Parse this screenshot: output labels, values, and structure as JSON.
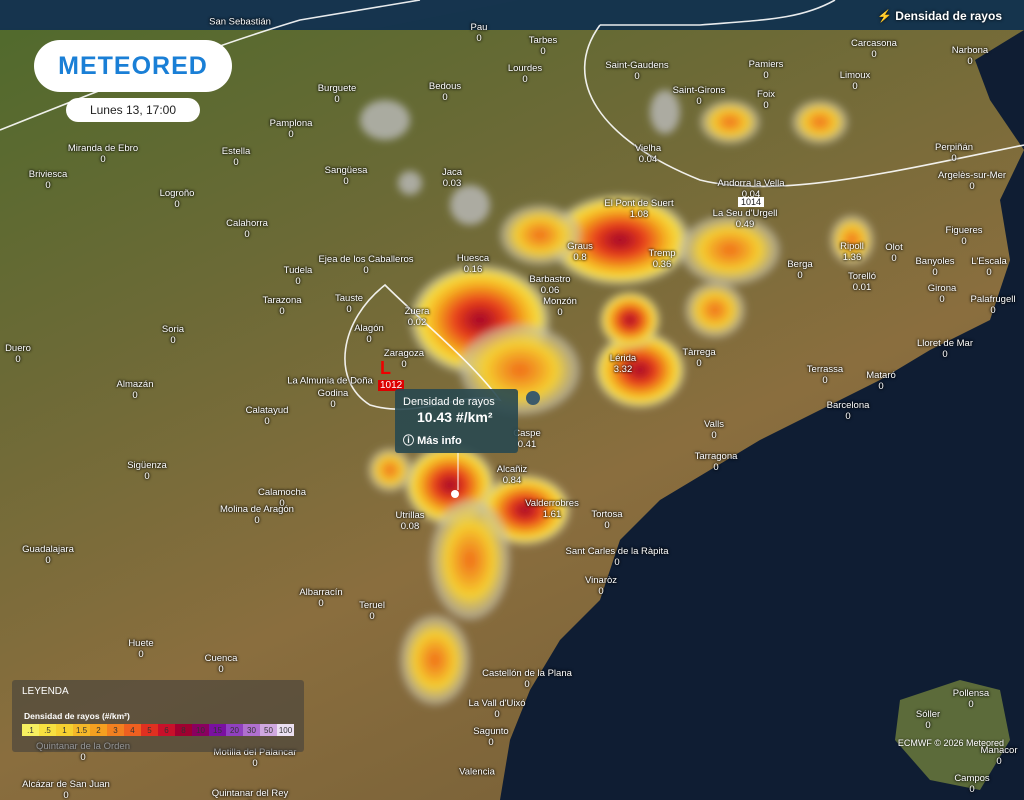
{
  "header": {
    "logo": "METEORED",
    "datetime": "Lunes 13, 17:00",
    "layer": "Densidad de rayos"
  },
  "tooltip": {
    "title": "Densidad de rayos",
    "value": "10.43 #/km²",
    "link": "Más info"
  },
  "pressure": [
    {
      "symbol": "L",
      "value": 1012
    },
    {
      "value": 1014
    }
  ],
  "legend": {
    "title": "LEYENDA",
    "subtitle": "Densidad de rayos (#/km²)",
    "ticks": [
      {
        "value": 0.1,
        "label": ".1"
      },
      {
        "value": 0.5,
        "label": ".5"
      },
      1,
      1.5,
      2,
      3,
      4,
      5,
      6,
      8,
      10,
      15,
      20,
      30,
      50,
      100
    ]
  },
  "footer": "ECMWF © 2026 Meteored",
  "cities": [
    {
      "name": "San Sebastián"
    },
    {
      "name": "Pau",
      "value": 0
    },
    {
      "name": "Tarbes",
      "value": 0
    },
    {
      "name": "Lourdes",
      "value": 0
    },
    {
      "name": "Saint-Gaudens",
      "value": 0
    },
    {
      "name": "Pamiers",
      "value": 0
    },
    {
      "name": "Carcasona",
      "value": 0
    },
    {
      "name": "Narbona",
      "value": 0
    },
    {
      "name": "Limoux",
      "value": 0
    },
    {
      "name": "Bilbao",
      "value": 0
    },
    {
      "name": "Burguete",
      "value": 0
    },
    {
      "name": "Bedous",
      "value": 0
    },
    {
      "name": "Saint-Girons",
      "value": 0
    },
    {
      "name": "Foix",
      "value": 0
    },
    {
      "name": "Pamplona",
      "value": 0
    },
    {
      "name": "Vielha",
      "value": 0.04
    },
    {
      "name": "Perpiñán",
      "value": 0
    },
    {
      "name": "Miranda de Ebro",
      "value": 0
    },
    {
      "name": "Estella",
      "value": 0
    },
    {
      "name": "Briviesca",
      "value": 0
    },
    {
      "name": "Sangüesa",
      "value": 0
    },
    {
      "name": "Jaca",
      "value": 0.03
    },
    {
      "name": "Andorra la Vella",
      "value": 0.04
    },
    {
      "name": "Argelès-sur-Mer",
      "value": 0
    },
    {
      "name": "Logroño",
      "value": 0
    },
    {
      "name": "El Pont de Suert",
      "value": 1.08
    },
    {
      "name": "La Seu d'Urgell",
      "value": 0.49
    },
    {
      "name": "Calahorra",
      "value": 0
    },
    {
      "name": "Figueres",
      "value": 0
    },
    {
      "name": "Ejea de los Caballeros",
      "value": 0
    },
    {
      "name": "Huesca",
      "value": 0.16
    },
    {
      "name": "Graus",
      "value": 0.8
    },
    {
      "name": "Tremp",
      "value": 0.36
    },
    {
      "name": "Ripoll",
      "value": 1.36
    },
    {
      "name": "Olot",
      "value": 0
    },
    {
      "name": "Tudela",
      "value": 0
    },
    {
      "name": "Berga",
      "value": 0
    },
    {
      "name": "Torelló",
      "value": 0.01
    },
    {
      "name": "Banyoles",
      "value": 0
    },
    {
      "name": "L'Escala",
      "value": 0
    },
    {
      "name": "Barbastro",
      "value": 0.06
    },
    {
      "name": "Tarazona",
      "value": 0
    },
    {
      "name": "Tauste",
      "value": 0
    },
    {
      "name": "Monzón",
      "value": 0
    },
    {
      "name": "Girona",
      "value": 0
    },
    {
      "name": "Palafrugell",
      "value": 0
    },
    {
      "name": "Soria",
      "value": 0
    },
    {
      "name": "Zuera",
      "value": 0.02
    },
    {
      "name": "Alagón",
      "value": 0
    },
    {
      "name": "Lérida",
      "value": 3.32
    },
    {
      "name": "Tàrrega",
      "value": 0
    },
    {
      "name": "Lloret de Mar",
      "value": 0
    },
    {
      "name": "Duero",
      "value": 0
    },
    {
      "name": "Zaragoza",
      "value": 0
    },
    {
      "name": "Almazán",
      "value": 0
    },
    {
      "name": "La Almunia de Doña"
    },
    {
      "name": "Godina",
      "value": 0
    },
    {
      "name": "Terrassa",
      "value": 0
    },
    {
      "name": "Mataró",
      "value": 0
    },
    {
      "name": "Barcelona",
      "value": 0
    },
    {
      "name": "Calatayud",
      "value": 0
    },
    {
      "name": "Valls",
      "value": 0
    },
    {
      "name": "Caspe",
      "value": 0.41
    },
    {
      "name": "Tarragona",
      "value": 0
    },
    {
      "name": "Sigüenza",
      "value": 0
    },
    {
      "name": "Alcañiz",
      "value": 0.84
    },
    {
      "name": "Calamocha",
      "value": 0
    },
    {
      "name": "Valderrobres",
      "value": 1.61
    },
    {
      "name": "Utrillas",
      "value": 0.08
    },
    {
      "name": "Tortosa",
      "value": 0
    },
    {
      "name": "Molina de Aragón",
      "value": 0
    },
    {
      "name": "Sant Carles de la Ràpita",
      "value": 0
    },
    {
      "name": "Guadalajara",
      "value": 0
    },
    {
      "name": "Vinaròz",
      "value": 0
    },
    {
      "name": "Albarracín",
      "value": 0
    },
    {
      "name": "Teruel",
      "value": 0
    },
    {
      "name": "Huete",
      "value": 0
    },
    {
      "name": "Cuenca",
      "value": 0
    },
    {
      "name": "Castellón de la Plana",
      "value": 0
    },
    {
      "name": "La Vall d'Uixó",
      "value": 0
    },
    {
      "name": "Sagunto",
      "value": 0
    },
    {
      "name": "Valencia"
    },
    {
      "name": "Pollensa",
      "value": 0
    },
    {
      "name": "Sóller",
      "value": 0
    },
    {
      "name": "Manacor",
      "value": 0
    },
    {
      "name": "Campos",
      "value": 0
    },
    {
      "name": "Quintanar de la Orden",
      "value": 0
    },
    {
      "name": "Motilla del Palancar",
      "value": 0
    },
    {
      "name": "Alcázar de San Juan",
      "value": 0
    },
    {
      "name": "Quintanar del Rey",
      "value": 0
    }
  ]
}
